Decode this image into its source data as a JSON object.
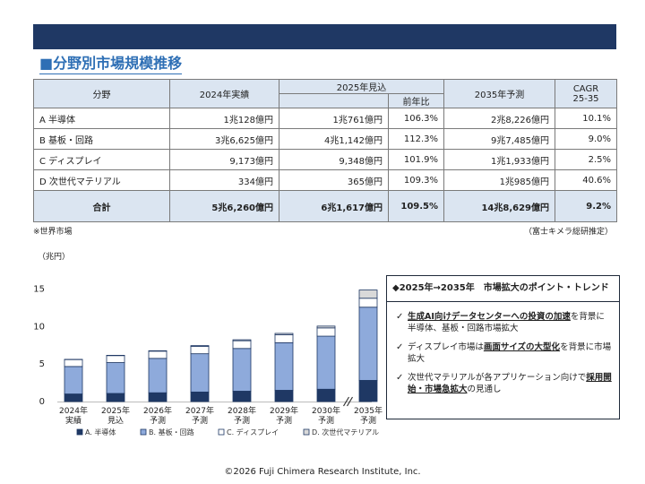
{
  "heading": "■分野別市場規模推移",
  "table": {
    "headers": {
      "field": "分野",
      "y2024": "2024年実績",
      "y2025": "2025年見込",
      "yoy": "前年比",
      "y2035": "2035年予測",
      "cagr_line1": "CAGR",
      "cagr_line2": "25-35"
    },
    "rows": [
      {
        "name": "A 半導体",
        "y2024": "1兆128億円",
        "y2025": "1兆761億円",
        "yoy": "106.3%",
        "y2035": "2兆8,226億円",
        "cagr": "10.1%"
      },
      {
        "name": "B 基板・回路",
        "y2024": "3兆6,625億円",
        "y2025": "4兆1,142億円",
        "yoy": "112.3%",
        "y2035": "9兆7,485億円",
        "cagr": "9.0%"
      },
      {
        "name": "C ディスプレイ",
        "y2024": "9,173億円",
        "y2025": "9,348億円",
        "yoy": "101.9%",
        "y2035": "1兆1,933億円",
        "cagr": "2.5%"
      },
      {
        "name": "D 次世代マテリアル",
        "y2024": "334億円",
        "y2025": "365億円",
        "yoy": "109.3%",
        "y2035": "1兆985億円",
        "cagr": "40.6%"
      }
    ],
    "total": {
      "name": "合計",
      "y2024": "5兆6,260億円",
      "y2025": "6兆1,617億円",
      "yoy": "109.5%",
      "y2035": "14兆8,629億円",
      "cagr": "9.2%"
    }
  },
  "note_left": "※世界市場",
  "note_right": "（富士キメラ総研推定）",
  "unit_label": "（兆円）",
  "trend_box": {
    "title": "◆2025年→2035年　市場拡大のポイント・トレンド",
    "items": [
      {
        "check": "✓",
        "pre": "",
        "strong": "生成AI向けデータセンターへの投資の加速",
        "post": "を背景に半導体、基板・回路市場拡大"
      },
      {
        "check": "✓",
        "pre": "ディスプレイ市場は",
        "strong": "画面サイズの大型化",
        "post": "を背景に市場拡大"
      },
      {
        "check": "✓",
        "pre": "次世代マテリアルが各アプリケーション向けで",
        "strong": "採用開始・市場急拡大",
        "post": "の見通し"
      }
    ]
  },
  "footer": "©2026 Fuji Chimera Research Institute, Inc.",
  "chart_data": {
    "type": "bar",
    "stacked": true,
    "categories": [
      [
        "2024年",
        "実績"
      ],
      [
        "2025年",
        "見込"
      ],
      [
        "2026年",
        "予測"
      ],
      [
        "2027年",
        "予測"
      ],
      [
        "2028年",
        "予測"
      ],
      [
        "2029年",
        "予測"
      ],
      [
        "2030年",
        "予測"
      ],
      [
        "2035年",
        "予測"
      ]
    ],
    "series": [
      {
        "name": "A. 半導体",
        "color": "#1f3864",
        "values": [
          1.01,
          1.08,
          1.17,
          1.27,
          1.38,
          1.5,
          1.64,
          2.82
        ]
      },
      {
        "name": "B. 基板・回路",
        "color": "#8eaadb",
        "values": [
          3.66,
          4.11,
          4.58,
          5.1,
          5.69,
          6.34,
          7.07,
          9.75
        ]
      },
      {
        "name": "C. ディスプレイ",
        "color": "#ffffff",
        "values": [
          0.92,
          0.93,
          0.96,
          0.99,
          1.03,
          1.06,
          1.1,
          1.19
        ]
      },
      {
        "name": "D. 次世代マテリアル",
        "color": "#d9d9d9",
        "values": [
          0.03,
          0.04,
          0.06,
          0.09,
          0.13,
          0.18,
          0.24,
          1.1
        ]
      }
    ],
    "yticks": [
      0,
      5,
      10,
      15
    ],
    "ylim": [
      0,
      16
    ],
    "axis_break_before_last": true,
    "grid": false,
    "legend_position": "bottom"
  }
}
